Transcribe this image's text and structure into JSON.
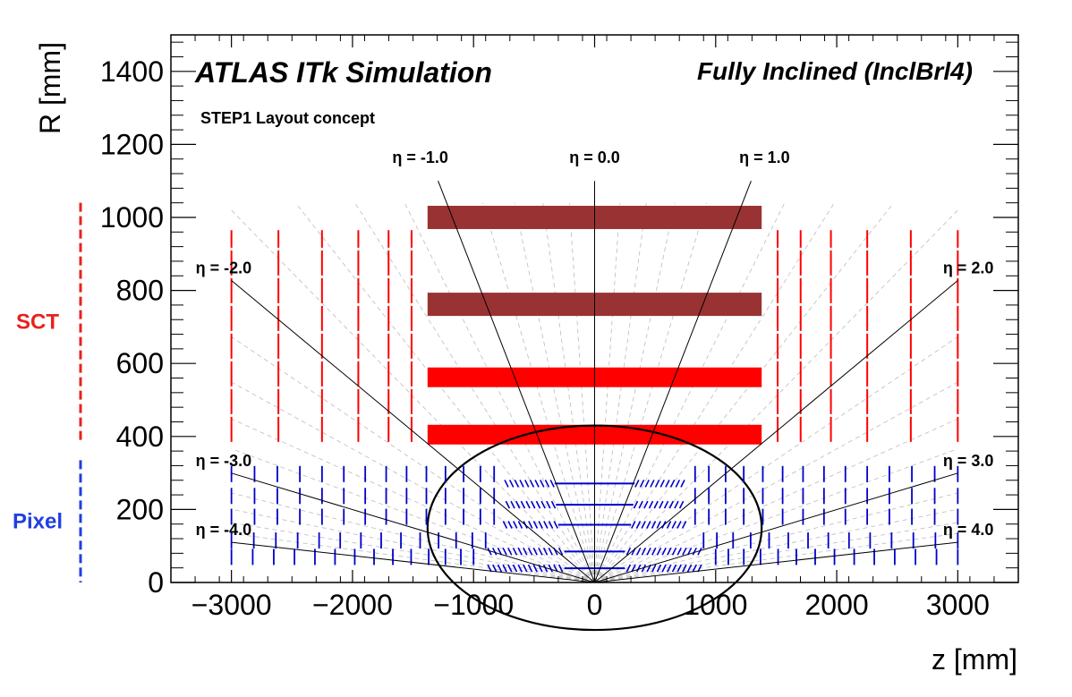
{
  "chart_data": {
    "type": "scatter",
    "title": "ATLAS ITk Simulation",
    "layout_name": "Fully Inclined (InclBrl4)",
    "subtitle": "STEP1 Layout concept",
    "xlabel": "z [mm]",
    "ylabel": "R [mm]",
    "xlim": [
      -3500,
      3500
    ],
    "ylim": [
      0,
      1500
    ],
    "x_ticks": [
      -3000,
      -2000,
      -1000,
      0,
      1000,
      2000,
      3000
    ],
    "x_tick_labels": [
      "−3000",
      "−2000",
      "−1000",
      "0",
      "1000",
      "2000",
      "3000"
    ],
    "y_ticks": [
      0,
      200,
      400,
      600,
      800,
      1000,
      1200,
      1400
    ],
    "y_tick_labels": [
      "0",
      "200",
      "400",
      "600",
      "800",
      "1000",
      "1200",
      "1400"
    ],
    "grid": false,
    "colors": {
      "sct_outer": "#993333",
      "sct": "#ff0000",
      "pixel": "#0000cc",
      "eta_line": "#000000",
      "eta_guide": "#bbbbbb",
      "sct_label": "#e8221c",
      "pixel_label": "#1f3fe0"
    },
    "eta_lines": [
      {
        "eta": -4.0,
        "label": "η = -4.0",
        "z_end": -3000
      },
      {
        "eta": -3.0,
        "label": "η = -3.0",
        "z_end": -3000
      },
      {
        "eta": -2.0,
        "label": "η = -2.0",
        "z_end": -3000
      },
      {
        "eta": -1.0,
        "label": "η = -1.0",
        "r_end": 1100
      },
      {
        "eta": 0.0,
        "label": "η = 0.0",
        "r_end": 1100
      },
      {
        "eta": 1.0,
        "label": "η = 1.0",
        "r_end": 1100
      },
      {
        "eta": 2.0,
        "label": "η = 2.0",
        "z_end": 3000
      },
      {
        "eta": 3.0,
        "label": "η = 3.0",
        "z_end": 3000
      },
      {
        "eta": 4.0,
        "label": "η = 4.0",
        "z_end": 3000
      }
    ],
    "sct_barrel_layers": [
      {
        "r": 405,
        "z_min": -1380,
        "z_max": 1380,
        "thickness": 22,
        "color": "sct"
      },
      {
        "r": 562,
        "z_min": -1380,
        "z_max": 1380,
        "thickness": 22,
        "color": "sct"
      },
      {
        "r": 762,
        "z_min": -1380,
        "z_max": 1380,
        "thickness": 26,
        "color": "sct_outer"
      },
      {
        "r": 1000,
        "z_min": -1380,
        "z_max": 1380,
        "thickness": 26,
        "color": "sct_outer"
      }
    ],
    "sct_endcap_disks": {
      "z": [
        1512,
        1702,
        1952,
        2252,
        2612,
        3000
      ],
      "r_min": 385,
      "r_max": 965
    },
    "pixel_barrel_layers": [
      {
        "r": 39,
        "z_min": -250,
        "z_max": 250
      },
      {
        "r": 85,
        "z_min": -250,
        "z_max": 250
      },
      {
        "r": 158,
        "z_min": -300,
        "z_max": 300
      },
      {
        "r": 213,
        "z_min": -320,
        "z_max": 320
      },
      {
        "r": 271,
        "z_min": -330,
        "z_max": 330
      }
    ],
    "pixel_inclined_rings": [
      {
        "r": 39,
        "z_min": 280,
        "z_max": 900
      },
      {
        "r": 85,
        "z_min": 280,
        "z_max": 900
      },
      {
        "r": 158,
        "z_min": 320,
        "z_max": 750
      },
      {
        "r": 213,
        "z_min": 340,
        "z_max": 750
      },
      {
        "r": 271,
        "z_min": 350,
        "z_max": 750
      }
    ],
    "pixel_endcap_rings": [
      {
        "r": 70,
        "z_min": 1000,
        "z_max": 3000
      },
      {
        "r": 115,
        "z_min": 900,
        "z_max": 3000
      },
      {
        "r": 180,
        "z_min": 830,
        "z_max": 3000
      },
      {
        "r": 237,
        "z_min": 830,
        "z_max": 3000
      },
      {
        "r": 297,
        "z_min": 830,
        "z_max": 3000
      }
    ],
    "pixel_envelope": {
      "center_z": 0,
      "center_r": 150,
      "radius_z": 1380,
      "radius_r": 280
    },
    "side_labels": [
      {
        "text": "SCT",
        "r_min": 390,
        "r_max": 1040,
        "color": "sct_label"
      },
      {
        "text": "Pixel",
        "r_min": 0,
        "r_max": 335,
        "color": "pixel_label"
      }
    ]
  }
}
